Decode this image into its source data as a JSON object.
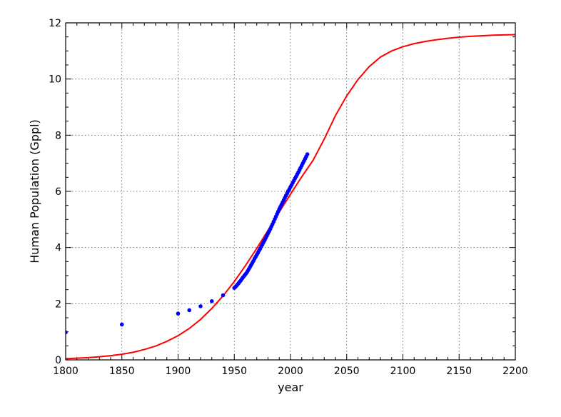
{
  "chart_data": {
    "type": "scatter",
    "title": "",
    "xlabel": "year",
    "ylabel": "Human Population (Gppl)",
    "xlim": [
      1800,
      2200
    ],
    "ylim": [
      0,
      12
    ],
    "xticks": [
      1800,
      1850,
      1900,
      1950,
      2000,
      2050,
      2100,
      2150,
      2200
    ],
    "yticks": [
      0,
      2,
      4,
      6,
      8,
      10,
      12
    ],
    "grid": true,
    "legend": "none",
    "colors": {
      "points": "#0000ff",
      "fit": "#ff0000",
      "grid": "#555555"
    },
    "series": [
      {
        "kind": "points",
        "x": [
          1800,
          1850,
          1900,
          1910,
          1920,
          1930,
          1940,
          1950,
          1951,
          1952,
          1953,
          1954,
          1955,
          1956,
          1957,
          1958,
          1959,
          1960,
          1961,
          1962,
          1963,
          1964,
          1965,
          1966,
          1967,
          1968,
          1969,
          1970,
          1971,
          1972,
          1973,
          1974,
          1975,
          1976,
          1977,
          1978,
          1979,
          1980,
          1981,
          1982,
          1983,
          1984,
          1985,
          1986,
          1987,
          1988,
          1989,
          1990,
          1991,
          1992,
          1993,
          1994,
          1995,
          1996,
          1997,
          1998,
          1999,
          2000,
          2001,
          2002,
          2003,
          2004,
          2005,
          2006,
          2007,
          2008,
          2009,
          2010,
          2011,
          2012,
          2013,
          2014,
          2015
        ],
        "y": [
          0.98,
          1.26,
          1.65,
          1.77,
          1.91,
          2.09,
          2.3,
          2.56,
          2.6,
          2.64,
          2.69,
          2.74,
          2.79,
          2.84,
          2.9,
          2.95,
          3.0,
          3.05,
          3.1,
          3.17,
          3.24,
          3.31,
          3.38,
          3.45,
          3.52,
          3.6,
          3.67,
          3.74,
          3.81,
          3.89,
          3.96,
          4.04,
          4.11,
          4.19,
          4.26,
          4.34,
          4.42,
          4.5,
          4.58,
          4.66,
          4.75,
          4.83,
          4.92,
          5.01,
          5.1,
          5.19,
          5.28,
          5.37,
          5.45,
          5.53,
          5.61,
          5.69,
          5.77,
          5.85,
          5.93,
          6.01,
          6.08,
          6.16,
          6.23,
          6.31,
          6.38,
          6.46,
          6.53,
          6.61,
          6.68,
          6.76,
          6.84,
          6.92,
          7.0,
          7.08,
          7.16,
          7.24,
          7.32
        ]
      },
      {
        "kind": "fitted-curve",
        "x": [
          1800,
          1810,
          1820,
          1830,
          1840,
          1850,
          1860,
          1870,
          1880,
          1890,
          1900,
          1910,
          1920,
          1930,
          1940,
          1950,
          1960,
          1970,
          1980,
          1990,
          2000,
          2010,
          2020,
          2030,
          2040,
          2050,
          2060,
          2070,
          2080,
          2090,
          2100,
          2110,
          2120,
          2130,
          2140,
          2150,
          2160,
          2170,
          2180,
          2190,
          2200
        ],
        "y": [
          0.04,
          0.06,
          0.08,
          0.11,
          0.15,
          0.2,
          0.27,
          0.37,
          0.49,
          0.66,
          0.86,
          1.12,
          1.44,
          1.83,
          2.28,
          2.79,
          3.36,
          3.97,
          4.61,
          5.26,
          5.9,
          6.52,
          7.1,
          7.86,
          8.7,
          9.4,
          9.98,
          10.44,
          10.78,
          11.0,
          11.15,
          11.26,
          11.34,
          11.4,
          11.45,
          11.49,
          11.52,
          11.54,
          11.56,
          11.57,
          11.58
        ]
      }
    ]
  }
}
